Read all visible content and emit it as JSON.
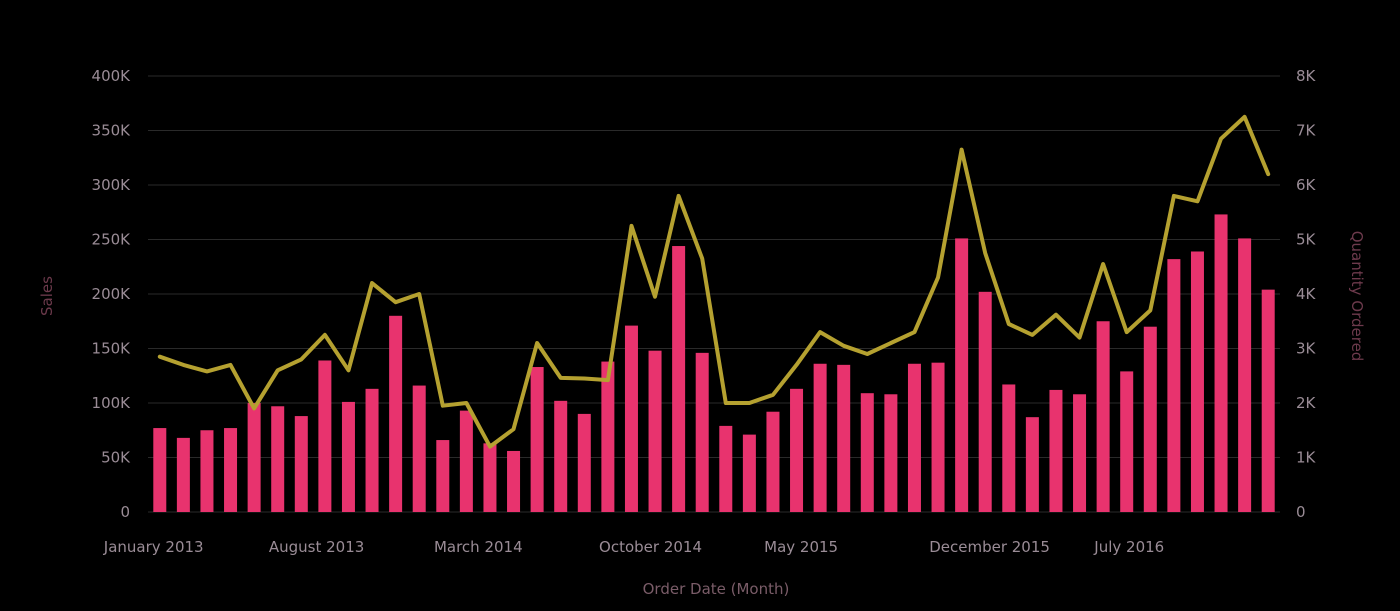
{
  "chart_data": {
    "type": "bar",
    "title": "",
    "xlabel": "Order Date (Month)",
    "ylabel": "Sales",
    "y2label": "Quantity Ordered",
    "ylim": [
      0,
      400000
    ],
    "y2lim": [
      0,
      8000
    ],
    "grid": true,
    "legend": "none",
    "colors": {
      "bar": "#e8336e",
      "line": "#b5a130",
      "background": "#000000"
    },
    "y_ticks": [
      "0",
      "50K",
      "100K",
      "150K",
      "200K",
      "250K",
      "300K",
      "350K",
      "400K"
    ],
    "y2_ticks": [
      "0",
      "1K",
      "2K",
      "3K",
      "4K",
      "5K",
      "6K",
      "7K",
      "8K"
    ],
    "x_tick_labels": [
      {
        "index": 0,
        "label": "January 2013"
      },
      {
        "index": 7,
        "label": "August 2013"
      },
      {
        "index": 14,
        "label": "March 2014"
      },
      {
        "index": 21,
        "label": "October 2014"
      },
      {
        "index": 28,
        "label": "May 2015"
      },
      {
        "index": 35,
        "label": "December 2015"
      },
      {
        "index": 42,
        "label": "July 2016"
      }
    ],
    "categories": [
      "Jan 2013",
      "Feb 2013",
      "Mar 2013",
      "Apr 2013",
      "May 2013",
      "Jun 2013",
      "Jul 2013",
      "Aug 2013",
      "Sep 2013",
      "Oct 2013",
      "Nov 2013",
      "Dec 2013",
      "Jan 2014",
      "Feb 2014",
      "Mar 2014",
      "Apr 2014",
      "May 2014",
      "Jun 2014",
      "Jul 2014",
      "Aug 2014",
      "Sep 2014",
      "Oct 2014",
      "Nov 2014",
      "Dec 2014",
      "Jan 2015",
      "Feb 2015",
      "Mar 2015",
      "Apr 2015",
      "May 2015",
      "Jun 2015",
      "Jul 2015",
      "Aug 2015",
      "Sep 2015",
      "Oct 2015",
      "Nov 2015",
      "Dec 2015",
      "Jan 2016",
      "Feb 2016",
      "Mar 2016",
      "Apr 2016",
      "May 2016",
      "Jun 2016",
      "Jul 2016",
      "Aug 2016",
      "Sep 2016",
      "Oct 2016",
      "Nov 2016",
      "Dec 2016"
    ],
    "series": [
      {
        "type": "bar",
        "axis": "left",
        "values": [
          77000,
          68000,
          75000,
          77000,
          100000,
          97000,
          88000,
          139000,
          101000,
          113000,
          180000,
          116000,
          66000,
          93000,
          63000,
          56000,
          133000,
          102000,
          90000,
          138000,
          171000,
          148000,
          244000,
          146000,
          79000,
          71000,
          92000,
          113000,
          136000,
          135000,
          109000,
          108000,
          136000,
          137000,
          251000,
          202000,
          117000,
          87000,
          112000,
          108000,
          175000,
          129000,
          170000,
          232000,
          239000,
          273000,
          251000,
          204000
        ]
      },
      {
        "type": "line",
        "axis": "right",
        "values": [
          2850,
          2700,
          2580,
          2700,
          1900,
          2600,
          2800,
          3250,
          2600,
          4200,
          3850,
          4000,
          1950,
          2000,
          1200,
          1520,
          3100,
          2460,
          2450,
          2420,
          5250,
          3950,
          5800,
          4650,
          2000,
          2000,
          2150,
          2700,
          3300,
          3050,
          2900,
          3100,
          3300,
          4300,
          6650,
          4750,
          3450,
          3250,
          3620,
          3200,
          4550,
          3300,
          3700,
          5800,
          5700,
          6850,
          7250,
          6200
        ]
      }
    ]
  }
}
